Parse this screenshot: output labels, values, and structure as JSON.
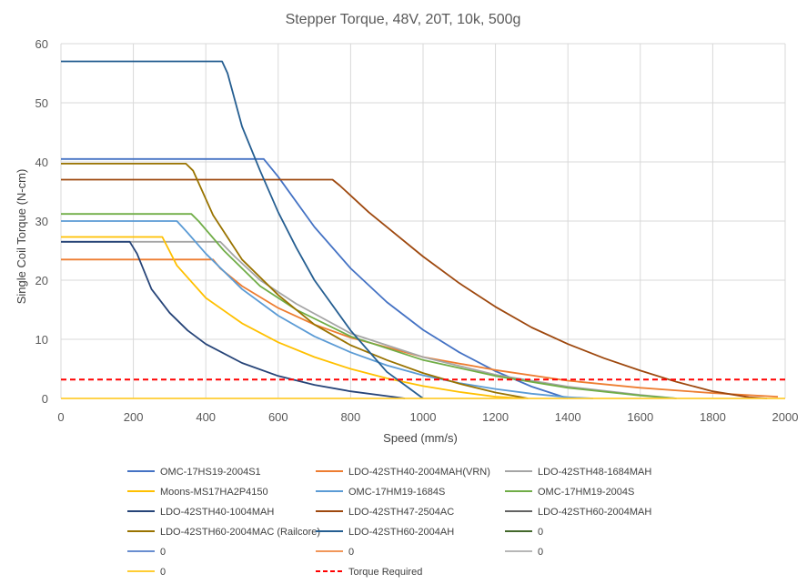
{
  "chart_data": {
    "type": "line",
    "title": "Stepper Torque, 48V, 20T, 10k, 500g",
    "xlabel": "Speed (mm/s)",
    "ylabel": "Single Coil Torque (N-cm)",
    "xlim": [
      0,
      2000
    ],
    "ylim": [
      0,
      60
    ],
    "x_ticks": [
      0,
      200,
      400,
      600,
      800,
      1000,
      1200,
      1400,
      1600,
      1800,
      2000
    ],
    "y_ticks": [
      0,
      10,
      20,
      30,
      40,
      50,
      60
    ],
    "grid": true,
    "legend_position": "bottom",
    "series": [
      {
        "name": "OMC-17HS19-2004S1",
        "color": "#4472c4",
        "dashed": false,
        "x": [
          0,
          560,
          600,
          700,
          800,
          900,
          1000,
          1100,
          1200,
          1300,
          1400
        ],
        "y": [
          40.5,
          40.5,
          37.5,
          29,
          22,
          16.3,
          11.6,
          7.8,
          4.6,
          2.0,
          0
        ]
      },
      {
        "name": "LDO-42STH40-2004MAH(VRN)",
        "color": "#ed7d31",
        "dashed": false,
        "x": [
          0,
          420,
          440,
          500,
          600,
          700,
          800,
          1000,
          1200,
          1400,
          1600,
          1800,
          1980
        ],
        "y": [
          23.5,
          23.5,
          22,
          19,
          15.3,
          12.5,
          10.3,
          7,
          4.8,
          3,
          1.8,
          0.9,
          0.3
        ]
      },
      {
        "name": "LDO-42STH48-1684MAH",
        "color": "#a5a5a5",
        "dashed": false,
        "x": [
          0,
          440,
          480,
          550,
          650,
          800,
          1000,
          1200,
          1400,
          1600,
          1700
        ],
        "y": [
          26.5,
          26.5,
          24,
          20,
          16,
          11,
          7,
          4,
          2,
          0.6,
          0
        ]
      },
      {
        "name": "Moons-MS17HA2P4150",
        "color": "#ffc000",
        "dashed": false,
        "x": [
          0,
          280,
          320,
          400,
          500,
          600,
          700,
          800,
          900,
          1000,
          1100,
          1200,
          1280
        ],
        "y": [
          27.3,
          27.3,
          22.5,
          17,
          12.7,
          9.5,
          7,
          5,
          3.4,
          2.1,
          1.1,
          0.3,
          0
        ]
      },
      {
        "name": "OMC-17HM19-1684S",
        "color": "#5b9bd5",
        "dashed": false,
        "x": [
          0,
          320,
          350,
          400,
          500,
          600,
          700,
          800,
          900,
          1000,
          1100,
          1200,
          1300,
          1400,
          1470
        ],
        "y": [
          30,
          30,
          28,
          24.5,
          18.5,
          14,
          10.5,
          7.8,
          5.6,
          3.9,
          2.6,
          1.6,
          0.8,
          0.2,
          0
        ]
      },
      {
        "name": "OMC-17HM19-2004S",
        "color": "#70ad47",
        "dashed": false,
        "x": [
          0,
          360,
          380,
          450,
          550,
          650,
          800,
          1000,
          1200,
          1400,
          1600,
          1700
        ],
        "y": [
          31.2,
          31.2,
          30,
          25,
          19,
          15,
          10.5,
          6.5,
          3.8,
          1.8,
          0.5,
          0
        ]
      },
      {
        "name": "LDO-42STH40-1004MAH",
        "color": "#264478",
        "dashed": false,
        "x": [
          0,
          190,
          210,
          250,
          300,
          350,
          400,
          500,
          600,
          700,
          800,
          900,
          950
        ],
        "y": [
          26.5,
          26.5,
          24.5,
          18.5,
          14.5,
          11.5,
          9.2,
          6,
          3.8,
          2.3,
          1.2,
          0.4,
          0
        ]
      },
      {
        "name": "LDO-42STH47-2504AC",
        "color": "#9e480e",
        "dashed": false,
        "x": [
          0,
          750,
          770,
          850,
          1000,
          1100,
          1200,
          1300,
          1400,
          1500,
          1600,
          1700,
          1800,
          1900,
          1950
        ],
        "y": [
          37,
          37,
          36,
          31.5,
          24,
          19.5,
          15.5,
          12,
          9.2,
          6.8,
          4.7,
          2.8,
          1.2,
          0.2,
          0
        ]
      },
      {
        "name": "LDO-42STH60-2004MAH",
        "color": "#636363",
        "dashed": false,
        "x": [],
        "y": []
      },
      {
        "name": "LDO-42STH60-2004MAC (Railcore)",
        "color": "#997300",
        "dashed": false,
        "x": [
          0,
          345,
          365,
          420,
          500,
          600,
          700,
          800,
          900,
          1000,
          1100,
          1200,
          1290
        ],
        "y": [
          39.7,
          39.7,
          38.5,
          31,
          23.5,
          17.5,
          12.5,
          9,
          6.5,
          4.3,
          2.5,
          1,
          0
        ]
      },
      {
        "name": "LDO-42STH60-2004AH",
        "color": "#255e91",
        "dashed": false,
        "x": [
          0,
          445,
          460,
          500,
          550,
          600,
          650,
          700,
          800,
          900,
          1000
        ],
        "y": [
          57,
          57,
          55,
          46,
          38.5,
          31.5,
          25.5,
          20,
          11.5,
          4.5,
          0
        ]
      },
      {
        "name": "0",
        "color": "#43682b",
        "dashed": false,
        "x": [],
        "y": []
      },
      {
        "name": "0",
        "color": "#698ed0",
        "dashed": false,
        "x": [],
        "y": []
      },
      {
        "name": "0",
        "color": "#f1975a",
        "dashed": false,
        "x": [],
        "y": []
      },
      {
        "name": "0",
        "color": "#b7b7b7",
        "dashed": false,
        "x": [],
        "y": []
      },
      {
        "name": "0",
        "color": "#ffcd33",
        "dashed": false,
        "x": [
          0,
          2000
        ],
        "y": [
          0,
          0
        ]
      },
      {
        "name": "Torque Required",
        "color": "#ff0000",
        "dashed": true,
        "x": [
          0,
          2000
        ],
        "y": [
          3.2,
          3.2
        ]
      }
    ]
  }
}
